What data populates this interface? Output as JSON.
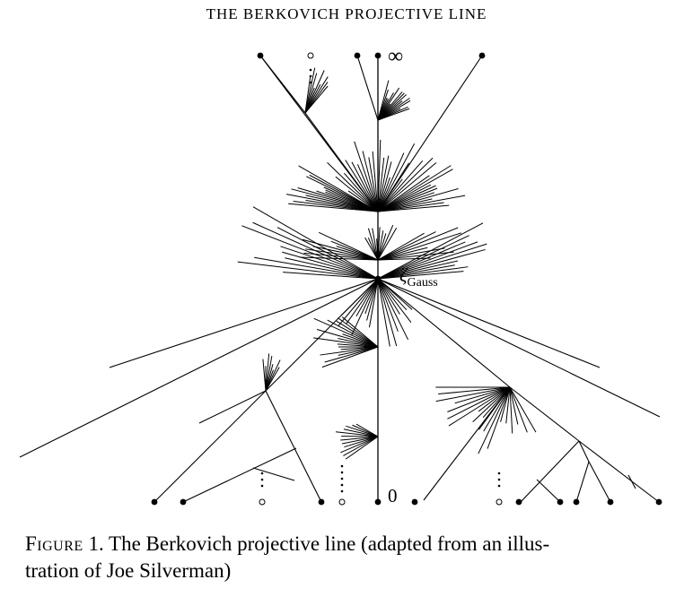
{
  "page": {
    "header": "THE BERKOVICH PROJECTIVE LINE"
  },
  "figure": {
    "labels": {
      "infinity": "∞",
      "zero": "0",
      "gauss_symbol": "ζ",
      "gauss_subscript": "Gauss"
    },
    "caption": {
      "figure_word": "Figure",
      "number": "1.",
      "text": "The Berkovich projective line (adapted from an illustration of Joe Silverman)",
      "line1": "The Berkovich projective line (adapted from an illus-",
      "line2": "tration of Joe Silverman)"
    }
  }
}
